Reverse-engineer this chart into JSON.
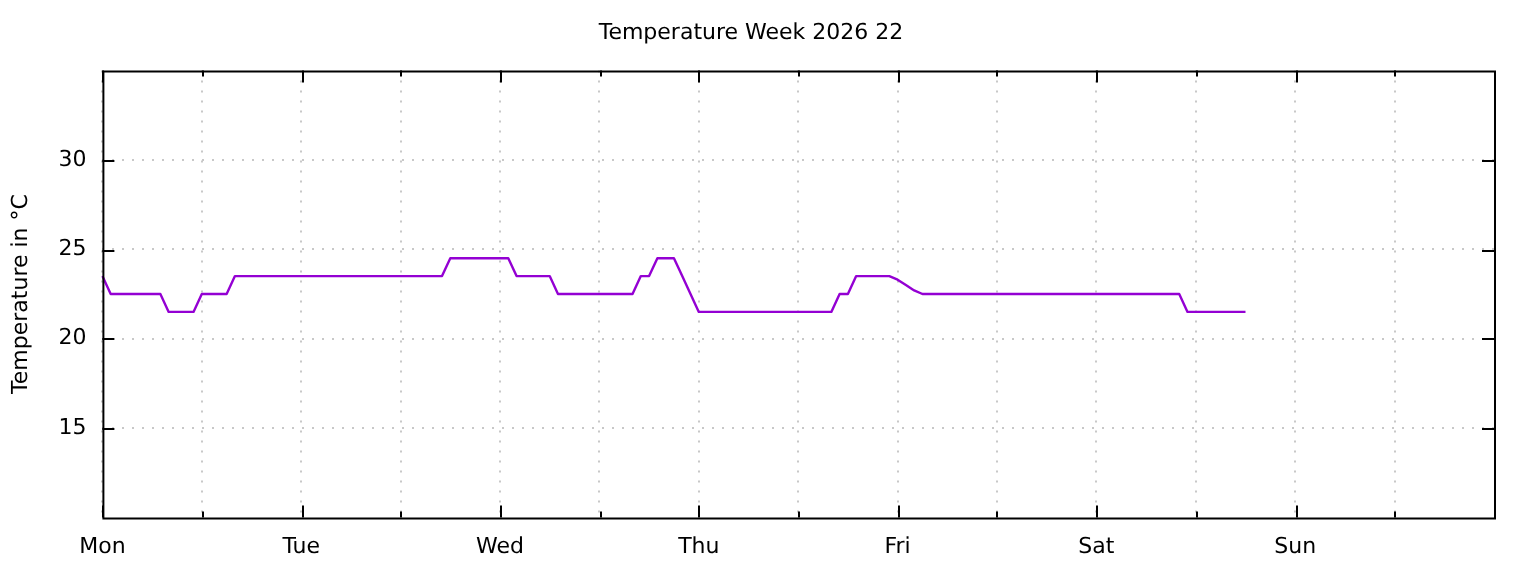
{
  "chart_data": {
    "type": "line",
    "title": "Temperature Week 2026 22",
    "ylabel": "Temperature in °C",
    "categories": [
      "Mon",
      null,
      null,
      null,
      null,
      null,
      null,
      null,
      null,
      null,
      null,
      null,
      null,
      null,
      null,
      null,
      null,
      null,
      null,
      null,
      null,
      null,
      null,
      null,
      "Tue",
      null,
      null,
      null,
      null,
      null,
      null,
      null,
      null,
      null,
      null,
      null,
      null,
      null,
      null,
      null,
      null,
      null,
      null,
      null,
      null,
      null,
      null,
      null,
      "Wed",
      null,
      null,
      null,
      null,
      null,
      null,
      null,
      null,
      null,
      null,
      null,
      null,
      null,
      null,
      null,
      null,
      null,
      null,
      null,
      null,
      null,
      null,
      null,
      "Thu",
      null,
      null,
      null,
      null,
      null,
      null,
      null,
      null,
      null,
      null,
      null,
      null,
      null,
      null,
      null,
      null,
      null,
      null,
      null,
      null,
      null,
      null,
      null,
      "Fri",
      null,
      null,
      null,
      null,
      null,
      null,
      null,
      null,
      null,
      null,
      null,
      null,
      null,
      null,
      null,
      null,
      null,
      null,
      null,
      null,
      null,
      null,
      null,
      "Sat",
      null,
      null,
      null,
      null,
      null,
      null,
      null,
      null,
      null,
      null,
      null,
      null,
      null,
      null,
      null,
      null,
      null,
      null,
      null,
      null,
      null,
      null,
      null,
      "Sun",
      null,
      null,
      null,
      null,
      null,
      null,
      null,
      null,
      null,
      null,
      null,
      null,
      null,
      null,
      null,
      null,
      null,
      null,
      null,
      null,
      null,
      null,
      null,
      null
    ],
    "series": [
      {
        "color": "#9400d3",
        "values": [
          23.5,
          22.5,
          22.5,
          22.5,
          22.5,
          22.5,
          22.5,
          22.5,
          21.5,
          21.5,
          21.5,
          21.5,
          22.5,
          22.5,
          22.5,
          22.5,
          23.5,
          23.5,
          23.5,
          23.5,
          23.5,
          23.5,
          23.5,
          23.5,
          23.5,
          23.5,
          23.5,
          23.5,
          23.5,
          23.5,
          23.5,
          23.5,
          23.5,
          23.5,
          23.5,
          23.5,
          23.5,
          23.5,
          23.5,
          23.5,
          23.5,
          23.5,
          24.5,
          24.5,
          24.5,
          24.5,
          24.5,
          24.5,
          24.5,
          24.5,
          23.5,
          23.5,
          23.5,
          23.5,
          23.5,
          22.5,
          22.5,
          22.5,
          22.5,
          22.5,
          22.5,
          22.5,
          22.5,
          22.5,
          22.5,
          23.5,
          23.5,
          24.5,
          24.5,
          24.5,
          23.5,
          22.5,
          21.5,
          21.5,
          21.5,
          21.5,
          21.5,
          21.5,
          21.5,
          21.5,
          21.5,
          21.5,
          21.5,
          21.5,
          21.5,
          21.5,
          21.5,
          21.5,
          21.5,
          22.5,
          22.5,
          23.5,
          23.5,
          23.5,
          23.5,
          23.5,
          23.3,
          23.0,
          22.7,
          22.5,
          22.5,
          22.5,
          22.5,
          22.5,
          22.5,
          22.5,
          22.5,
          22.5,
          22.5,
          22.5,
          22.5,
          22.5,
          22.5,
          22.5,
          22.5,
          22.5,
          22.5,
          22.5,
          22.5,
          22.5,
          22.5,
          22.5,
          22.5,
          22.5,
          22.5,
          22.5,
          22.5,
          22.5,
          22.5,
          22.5,
          22.5,
          21.5,
          21.5,
          21.5,
          21.5,
          21.5,
          21.5,
          21.5,
          21.5,
          null,
          null,
          null,
          null,
          null,
          null,
          null,
          null,
          null,
          null,
          null,
          null,
          null,
          null,
          null,
          null,
          null,
          null,
          null,
          null,
          null,
          null,
          null,
          null,
          null,
          null,
          null,
          null,
          null,
          null
        ]
      }
    ],
    "ylim": [
      10,
      35
    ],
    "yticks": [
      15,
      20,
      25,
      30
    ],
    "grid": true,
    "legend": false,
    "marker": "none",
    "line_style": "solid"
  }
}
